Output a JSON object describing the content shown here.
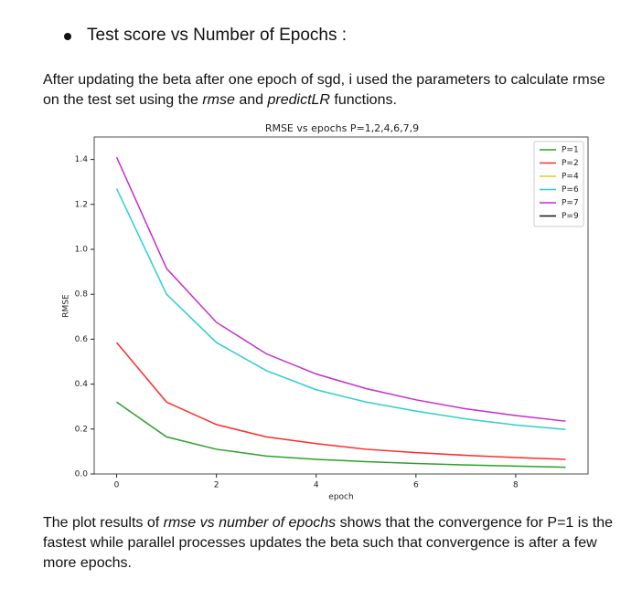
{
  "heading": "Test score vs Number of Epochs :",
  "paragraphs": [
    {
      "parts": [
        {
          "text": " After updating the beta after one epoch of sgd, i used the parameters to calculate rmse on the test set using the "
        },
        {
          "text": "rmse",
          "italic": true
        },
        {
          "text": " and "
        },
        {
          "text": "predictLR",
          "italic": true
        },
        {
          "text": " functions."
        }
      ]
    },
    {
      "parts": [
        {
          "text": "The plot results of "
        },
        {
          "text": "rmse vs number of epochs",
          "italic": true
        },
        {
          "text": " shows that the convergence for P=1 is the fastest while parallel processes updates the beta such that convergence is after a few more epochs."
        }
      ]
    }
  ],
  "chart_data": {
    "type": "line",
    "title": "RMSE vs epochs P=1,2,4,6,7,9",
    "x_label": "epoch",
    "y_label": "RMSE",
    "x": [
      0,
      1,
      2,
      3,
      4,
      5,
      6,
      7,
      8,
      9
    ],
    "series": [
      {
        "name": "P=1",
        "color": "#2ca02c",
        "values": [
          0.32,
          0.165,
          0.11,
          0.08,
          0.065,
          0.055,
          0.047,
          0.04,
          0.035,
          0.03
        ]
      },
      {
        "name": "P=2",
        "color": "#ff2a2a",
        "values": [
          0.585,
          0.32,
          0.22,
          0.165,
          0.135,
          0.11,
          0.095,
          0.083,
          0.073,
          0.065
        ]
      },
      {
        "name": "P=4",
        "color": "#dccb2a",
        "values": [
          null,
          null,
          null,
          null,
          null,
          null,
          null,
          null,
          null,
          null
        ]
      },
      {
        "name": "P=6",
        "color": "#2ccfcf",
        "values": [
          1.27,
          0.8,
          0.585,
          0.46,
          0.375,
          0.32,
          0.28,
          0.245,
          0.218,
          0.198
        ]
      },
      {
        "name": "P=7",
        "color": "#c42ccf",
        "values": [
          1.41,
          0.915,
          0.675,
          0.535,
          0.445,
          0.38,
          0.33,
          0.29,
          0.26,
          0.235
        ]
      },
      {
        "name": "P=9",
        "color": "#111111",
        "values": [
          null,
          null,
          null,
          null,
          null,
          null,
          null,
          null,
          null,
          null
        ]
      }
    ],
    "xlim": [
      -0.45,
      9.45
    ],
    "ylim": [
      0,
      1.5
    ],
    "xticks": [
      0,
      2,
      4,
      6,
      8
    ],
    "yticks": [
      {
        "value": 0,
        "label": "0.0"
      },
      0.2,
      0.4,
      0.6,
      0.8,
      {
        "value": 1,
        "label": "1.0"
      },
      1.2,
      1.4
    ],
    "legend": "upper right",
    "grid": false
  }
}
